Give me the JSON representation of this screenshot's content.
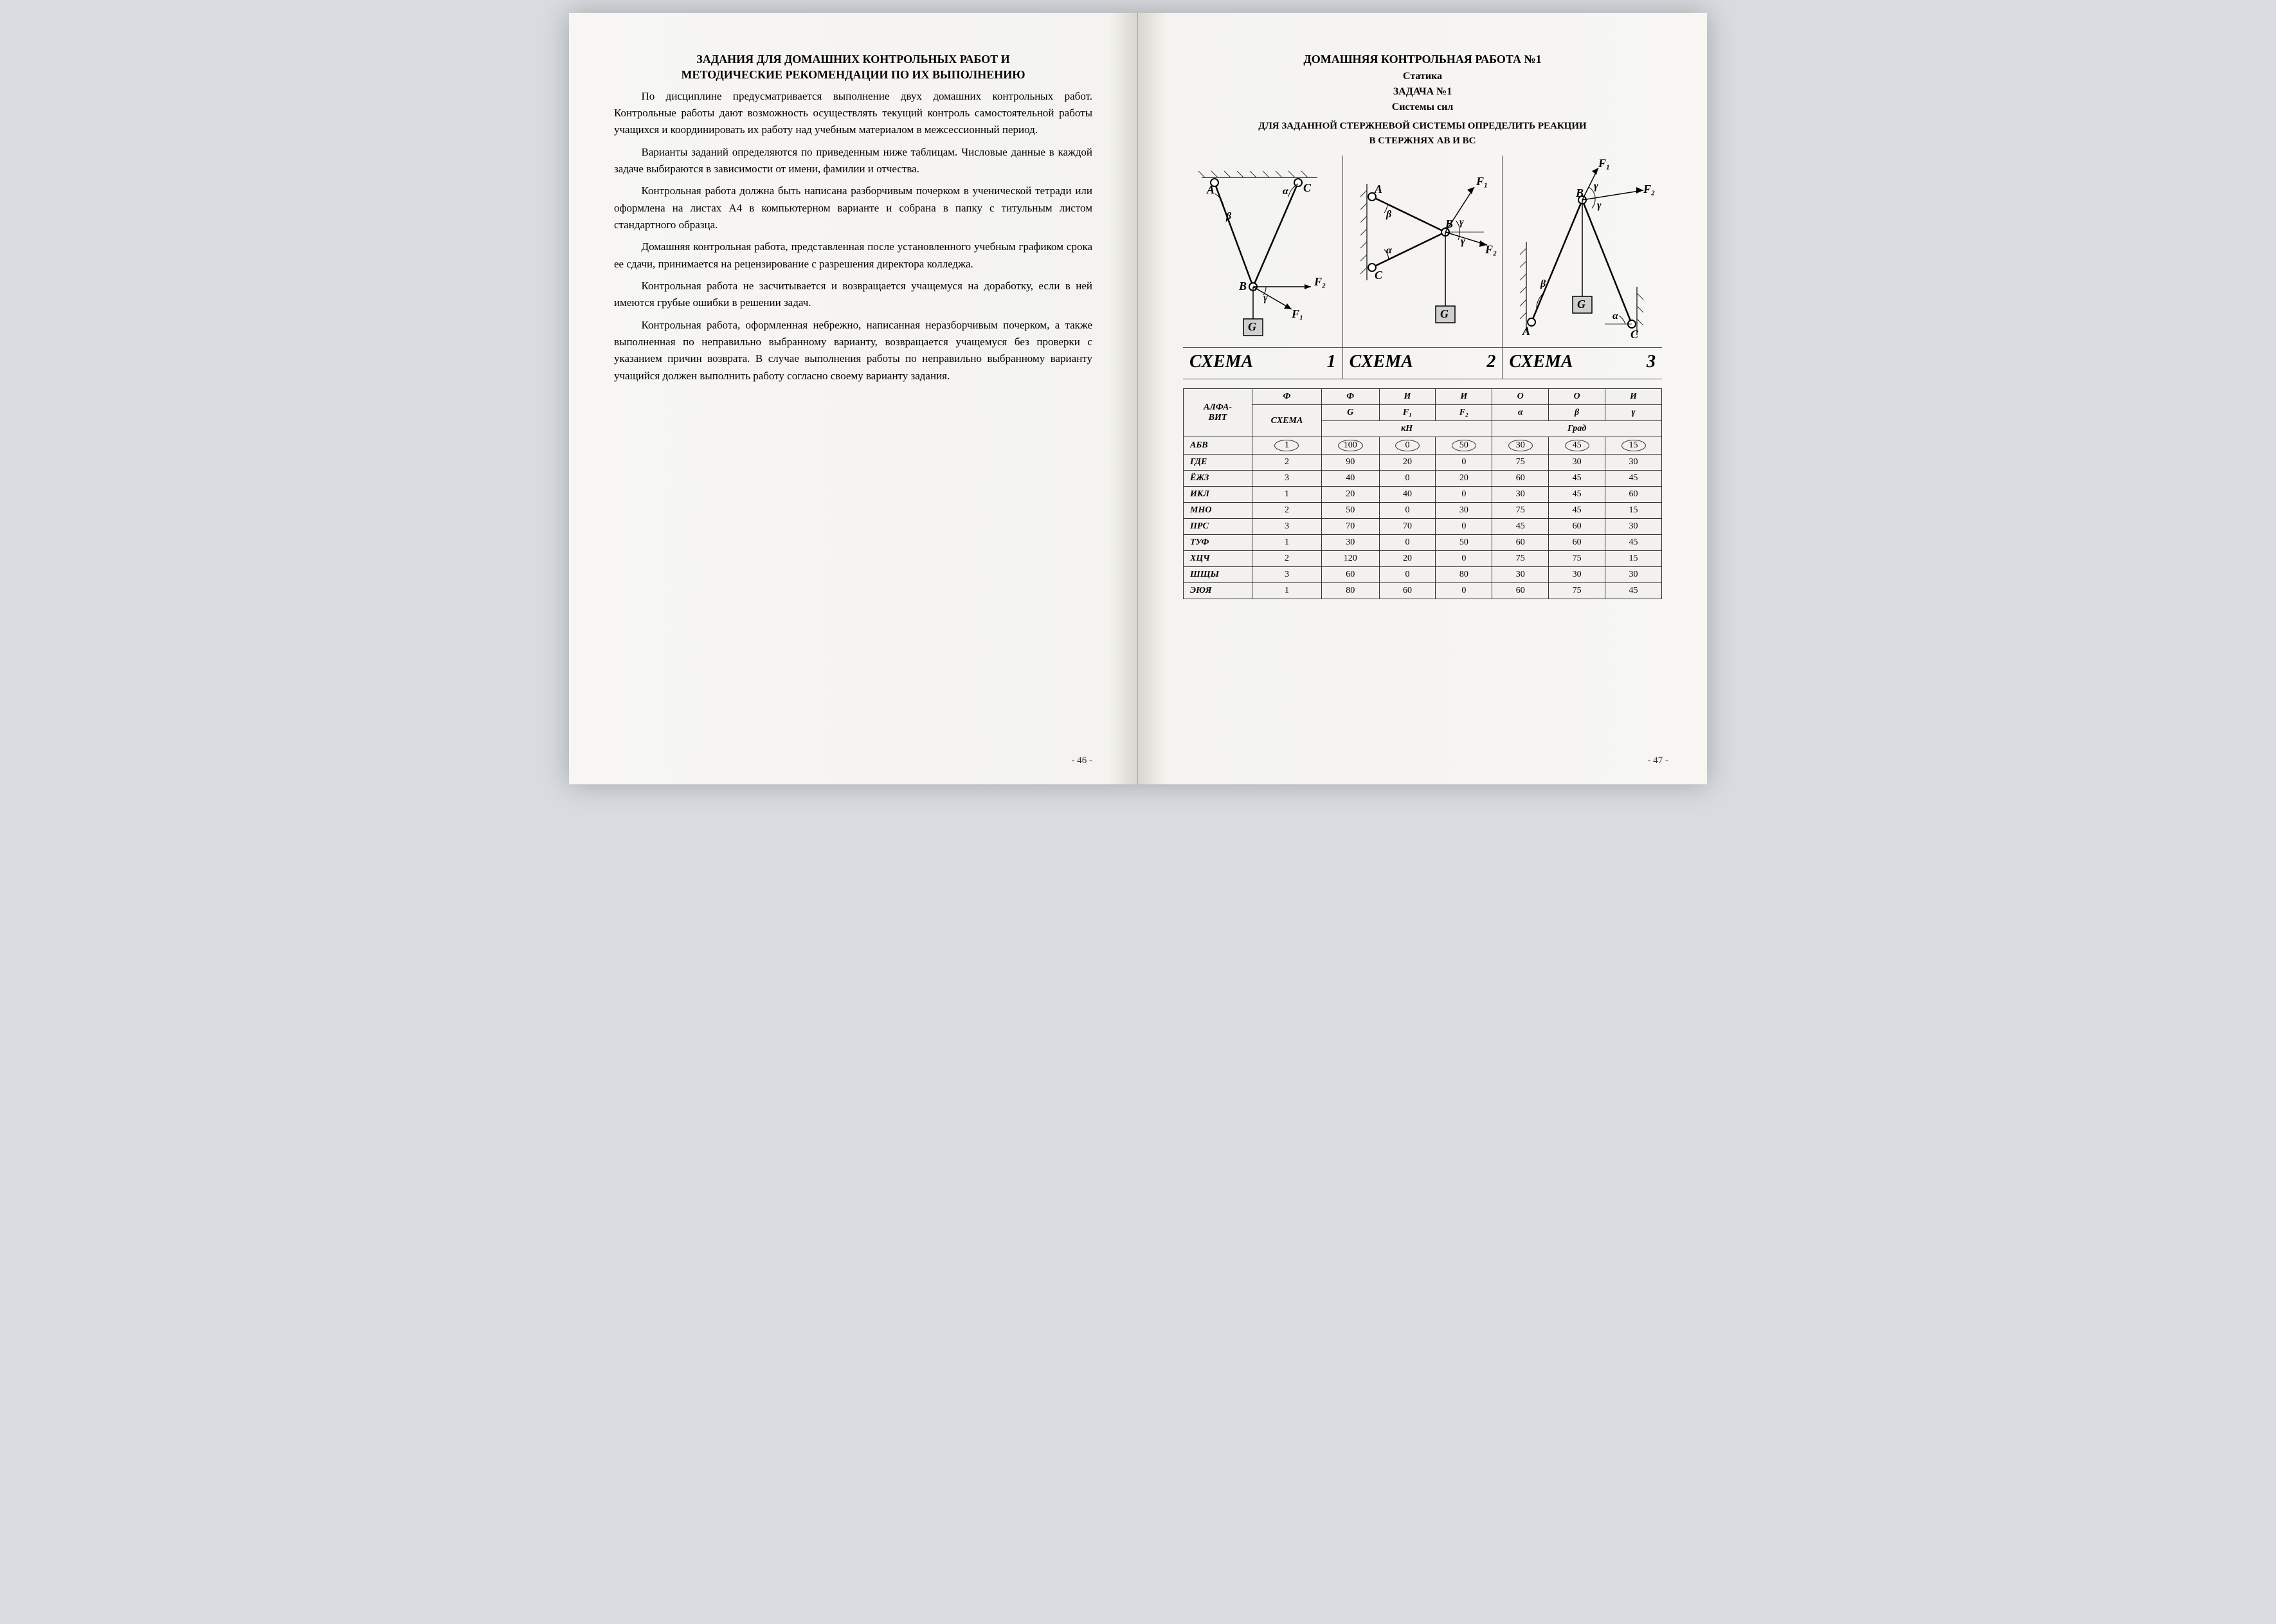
{
  "left": {
    "title_l1": "ЗАДАНИЯ ДЛЯ ДОМАШНИХ КОНТРОЛЬНЫХ РАБОТ И",
    "title_l2": "МЕТОДИЧЕСКИЕ РЕКОМЕНДАЦИИ ПО ИХ ВЫПОЛНЕНИЮ",
    "paras": [
      "По дисциплине предусматривается выполнение двух домашних контрольных работ. Контрольные работы дают возможность осуществлять текущий контроль самостоятельной работы учащихся и координировать их работу над учебным материалом в межсессионный период.",
      "Варианты заданий определяются по приведенным ниже таблицам. Числовые данные в каждой задаче выбираются в зависимости от имени, фамилии и отчества.",
      "Контрольная работа должна быть написана разборчивым почерком в ученической тетради или оформлена на листах А4 в компьютерном варианте и собрана в папку с титульным листом стандартного образца.",
      "Домашняя контрольная работа, представленная после установленного учебным графиком срока ее сдачи, принимается на рецензирование с разрешения директора колледжа.",
      "Контрольная работа не засчитывается и возвращается учащемуся на доработку, если в ней имеются грубые ошибки в решении задач.",
      "Контрольная работа, оформленная небрежно, написанная неразборчивым почерком, а также выполненная по неправильно выбранному варианту, возвращается учащемуся без проверки с указанием причин возврата. В случае выполнения работы по неправильно выбранному варианту учащийся должен выполнить работу согласно своему варианту задания."
    ],
    "pagenum": "- 46 -"
  },
  "right": {
    "t1": "ДОМАШНЯЯ КОНТРОЛЬНАЯ РАБОТА №1",
    "t2": "Статика",
    "t3": "ЗАДАЧА №1",
    "t4": "Системы сил",
    "t5": "ДЛЯ ЗАДАННОЙ СТЕРЖНЕВОЙ СИСТЕМЫ ОПРЕДЕЛИТЬ РЕАКЦИИ",
    "t6_a": "В СТЕРЖНЯХ ",
    "t6_b": "AB",
    "t6_c": " И ",
    "t6_d": "BC",
    "schema_w": "СХЕМА",
    "s1": "1",
    "s2": "2",
    "s3": "3",
    "table": {
      "alfavit": "АЛФА-\nВИТ",
      "schema": "СХЕМА",
      "h_phi": "Ф",
      "h_i": "И",
      "h_o": "О",
      "h_G": "G",
      "h_F1": "F₁",
      "h_F2": "F₂",
      "h_alpha": "α",
      "h_beta": "β",
      "h_gamma": "γ",
      "unit_kn": "кН",
      "unit_grad": "Град",
      "rows": [
        {
          "l": "АБВ",
          "sc": "1",
          "g": "100",
          "f1": "0",
          "f2": "50",
          "a": "30",
          "b": "45",
          "c": "15",
          "circ": true
        },
        {
          "l": "ГДЕ",
          "sc": "2",
          "g": "90",
          "f1": "20",
          "f2": "0",
          "a": "75",
          "b": "30",
          "c": "30"
        },
        {
          "l": "ЁЖЗ",
          "sc": "3",
          "g": "40",
          "f1": "0",
          "f2": "20",
          "a": "60",
          "b": "45",
          "c": "45"
        },
        {
          "l": "ИКЛ",
          "sc": "1",
          "g": "20",
          "f1": "40",
          "f2": "0",
          "a": "30",
          "b": "45",
          "c": "60"
        },
        {
          "l": "МНО",
          "sc": "2",
          "g": "50",
          "f1": "0",
          "f2": "30",
          "a": "75",
          "b": "45",
          "c": "15"
        },
        {
          "l": "ПРС",
          "sc": "3",
          "g": "70",
          "f1": "70",
          "f2": "0",
          "a": "45",
          "b": "60",
          "c": "30"
        },
        {
          "l": "ТУФ",
          "sc": "1",
          "g": "30",
          "f1": "0",
          "f2": "50",
          "a": "60",
          "b": "60",
          "c": "45"
        },
        {
          "l": "ХЦЧ",
          "sc": "2",
          "g": "120",
          "f1": "20",
          "f2": "0",
          "a": "75",
          "b": "75",
          "c": "15"
        },
        {
          "l": "ШЩЫ",
          "sc": "3",
          "g": "60",
          "f1": "0",
          "f2": "80",
          "a": "30",
          "b": "30",
          "c": "30"
        },
        {
          "l": "ЭЮЯ",
          "sc": "1",
          "g": "80",
          "f1": "60",
          "f2": "0",
          "a": "60",
          "b": "75",
          "c": "45"
        }
      ]
    },
    "pagenum": "- 47 -",
    "labels": {
      "A": "A",
      "B": "B",
      "C": "C",
      "G": "G",
      "F1": "F₁",
      "F2": "F₂",
      "alpha": "α",
      "beta": "β",
      "gamma": "γ"
    },
    "colors": {
      "stroke": "#000000",
      "hatch": "#333333",
      "fill_node": "#ffffff",
      "fill_box": "#cfcfcf"
    }
  }
}
